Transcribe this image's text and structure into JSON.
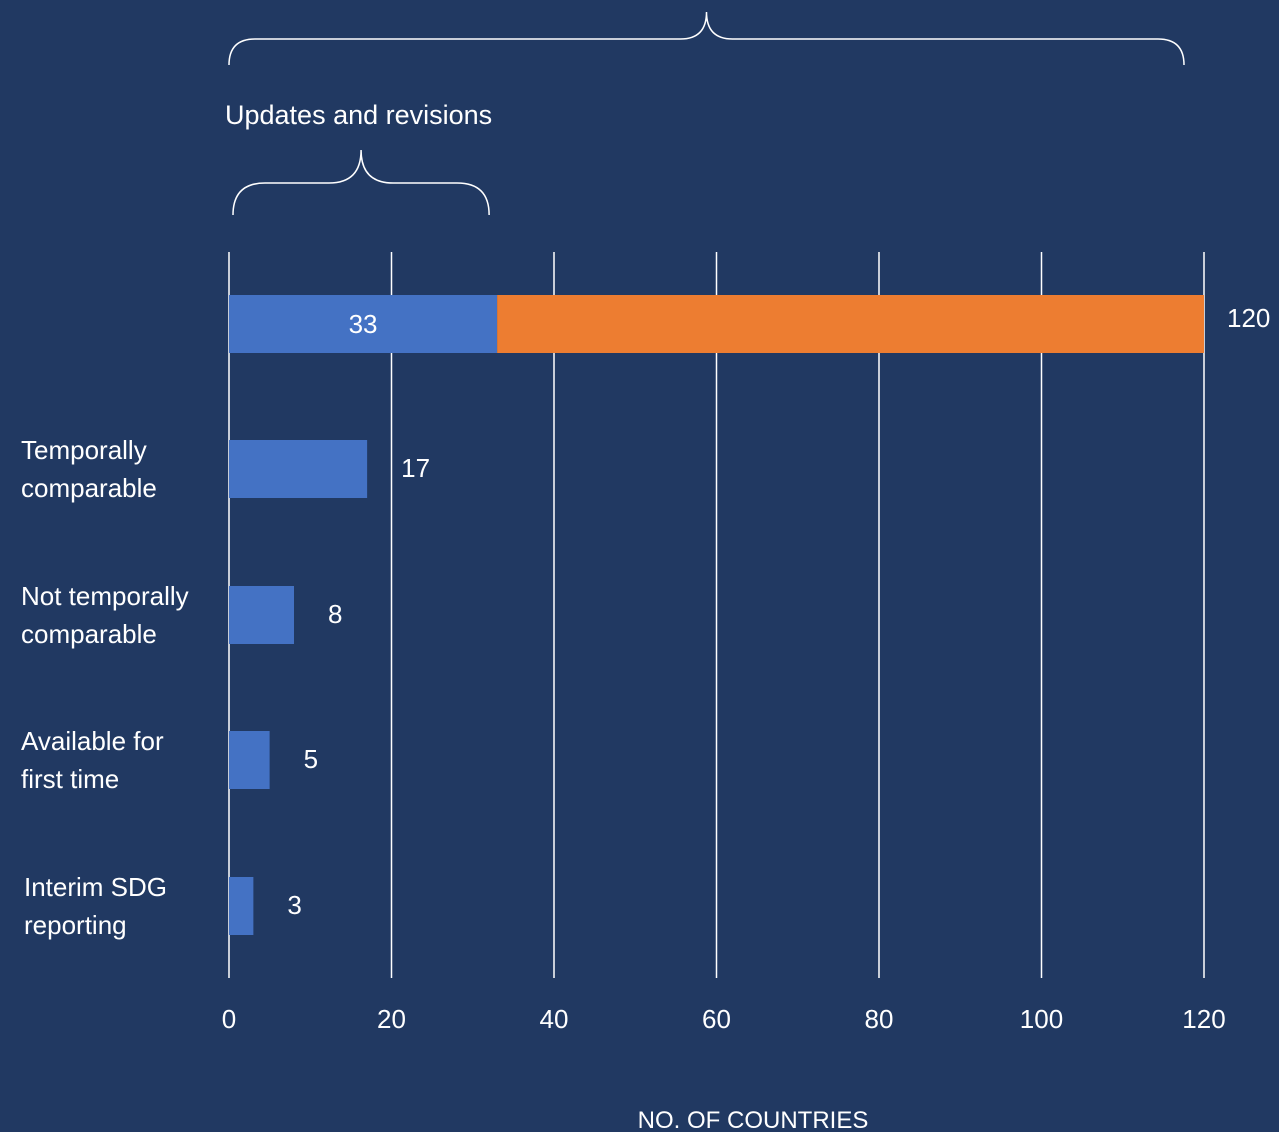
{
  "chart_data": {
    "type": "bar",
    "orientation": "horizontal",
    "stacked": true,
    "categories": [
      "",
      "Temporally comparable",
      "Not temporally comparable",
      "Available for first time",
      "Interim SDG reporting"
    ],
    "category_lines": [
      [],
      [
        "Temporally",
        "comparable"
      ],
      [
        "Not temporally",
        "comparable"
      ],
      [
        "Available for",
        "first time"
      ],
      [
        "Interim SDG",
        "reporting"
      ]
    ],
    "series": [
      {
        "values": [
          33,
          17,
          8,
          5,
          3
        ],
        "color": "#4472c4"
      },
      {
        "values": [
          87,
          0,
          0,
          0,
          0
        ],
        "color": "#ed7d31"
      }
    ],
    "data_labels": [
      "33",
      "17",
      "8",
      "5",
      "3"
    ],
    "total_label": "120",
    "xlim": [
      0,
      120
    ],
    "xticks": [
      "0",
      "20",
      "40",
      "60",
      "80",
      "100",
      "120"
    ],
    "xlabel": "NO. OF COUNTRIES",
    "grid": true,
    "annotations": {
      "inner_brace_label": "Updates and revisions",
      "inner_brace_range": [
        0,
        33
      ],
      "outer_brace_range": [
        0,
        120
      ]
    },
    "colors": {
      "background": "#213962",
      "text": "#ffffff",
      "gridline": "#ffffff"
    }
  }
}
